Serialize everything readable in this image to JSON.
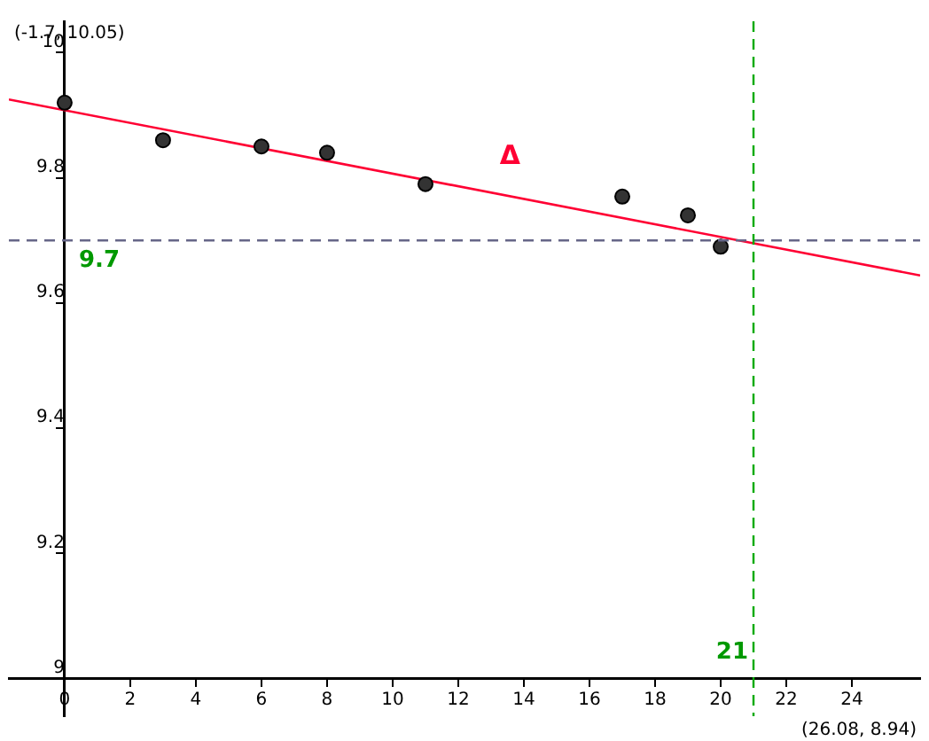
{
  "chart_data": {
    "type": "scatter",
    "xlim": [
      -1.7,
      26.08
    ],
    "ylim": [
      8.94,
      10.05
    ],
    "xticks": [
      0,
      2,
      4,
      6,
      8,
      10,
      12,
      14,
      16,
      18,
      20,
      22,
      24
    ],
    "yticks": [
      9,
      9.2,
      9.4,
      9.6,
      9.8,
      10
    ],
    "grid": false,
    "marker": "circle",
    "series": [
      {
        "color": "#333333",
        "x": [
          0,
          3,
          6,
          8,
          11,
          17,
          19,
          20
        ],
        "values": [
          9.92,
          9.86,
          9.85,
          9.84,
          9.79,
          9.77,
          9.74,
          9.69
        ]
      },
      {
        "type": "line",
        "color": "#ff0033",
        "marker": "none",
        "x": [
          -1.7,
          26.08
        ],
        "values": [
          9.925,
          9.644
        ]
      }
    ],
    "ref_lines": [
      {
        "axis": "y",
        "value": 9.7,
        "label": "9.7",
        "color": "#666688",
        "line_style": "dashed"
      },
      {
        "axis": "x",
        "value": 21,
        "label": "21",
        "color": "#00aa00",
        "line_style": "dashed"
      }
    ],
    "annotations": [
      "(-1.7, 10.05)",
      "(26.08, 8.94)",
      "Δ"
    ]
  }
}
